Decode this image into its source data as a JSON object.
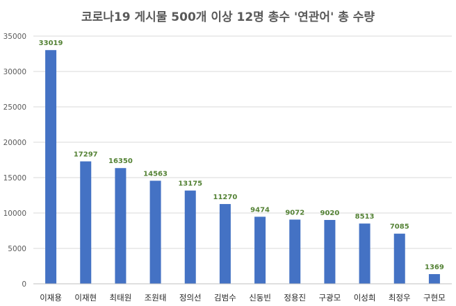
{
  "chart_data": {
    "type": "bar",
    "title": "코로나19 게시물 500개 이상 12명 총수 '연관어' 총 수량",
    "xlabel": "",
    "ylabel": "",
    "categories": [
      "이재용",
      "이재현",
      "최태원",
      "조원태",
      "정의선",
      "김범수",
      "신동빈",
      "정용진",
      "구광모",
      "이성희",
      "최정우",
      "구현모"
    ],
    "series": [
      {
        "values": [
          33019,
          17297,
          16350,
          14563,
          13175,
          11270,
          9474,
          9072,
          9020,
          8513,
          7085,
          1369
        ]
      }
    ],
    "ylim": [
      0,
      35000
    ],
    "yticks": [
      0,
      5000,
      10000,
      15000,
      20000,
      25000,
      30000,
      35000
    ],
    "grid": true,
    "legend": "none",
    "data_labels": true,
    "colors": {
      "bar": "#4472C4",
      "data_label": "#548235",
      "grid": "#D9D9D9",
      "axis": "#BFBFBF"
    }
  }
}
